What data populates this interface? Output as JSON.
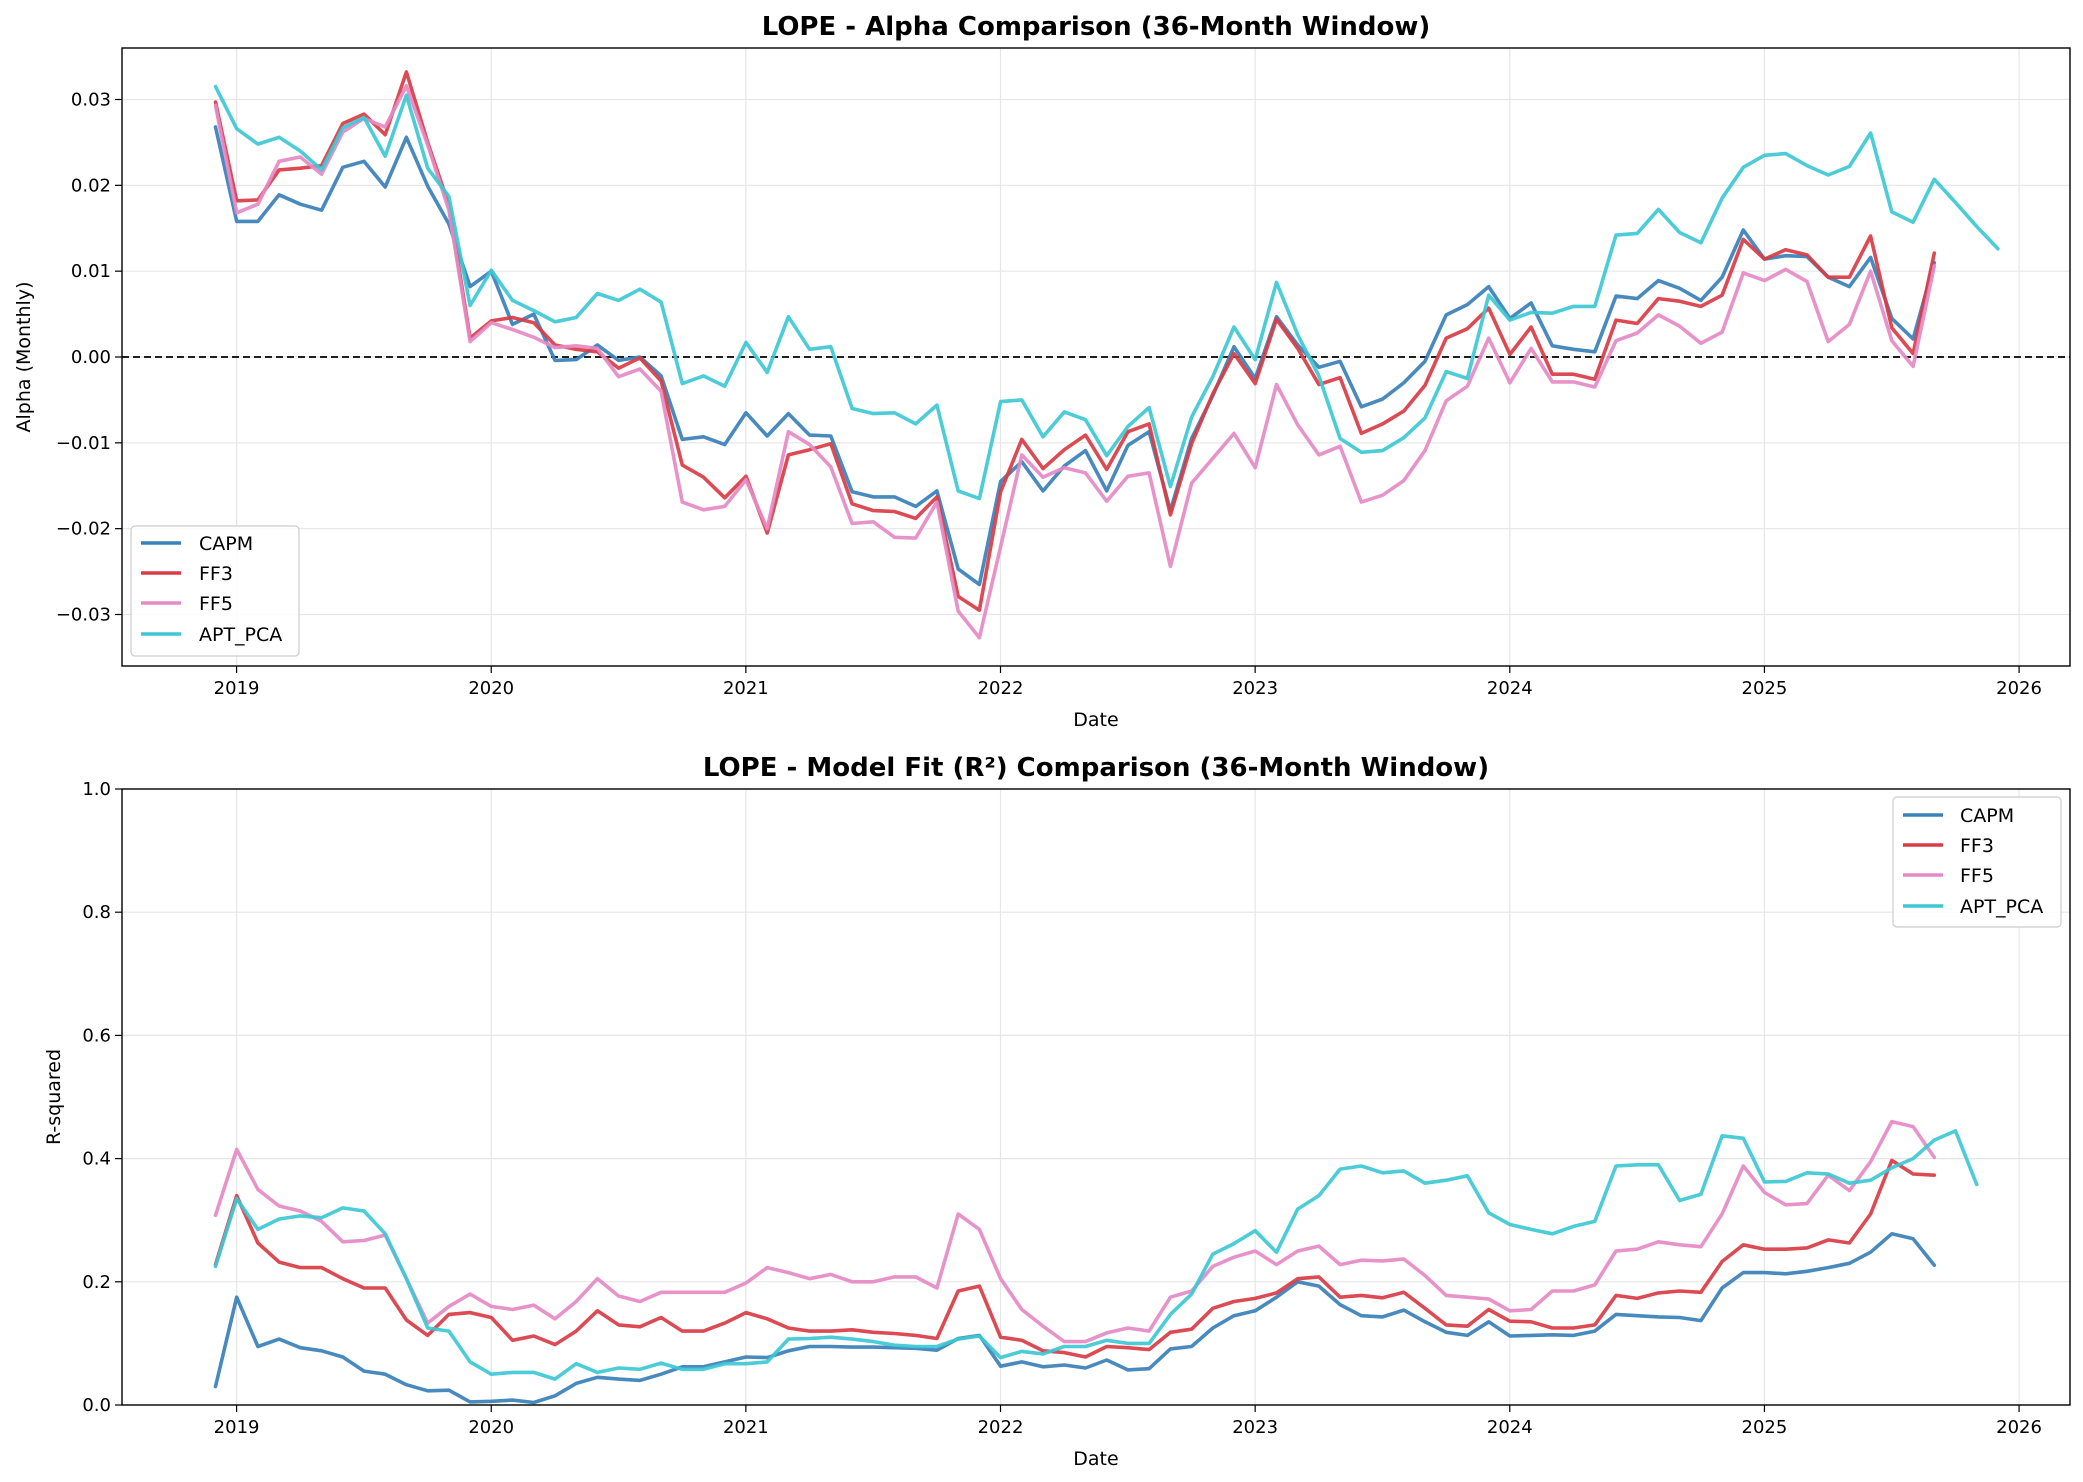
{
  "chart_data": [
    {
      "type": "line",
      "title": "LOPE - Alpha Comparison (36-Month Window)",
      "xlabel": "Date",
      "ylabel": "Alpha (Monthly)",
      "xlim": [
        2018.55,
        2026.2
      ],
      "ylim": [
        -0.036,
        0.036
      ],
      "x_ticks": [
        2019,
        2020,
        2021,
        2022,
        2023,
        2024,
        2025,
        2026
      ],
      "x_tick_labels": [
        "2019",
        "2020",
        "2021",
        "2022",
        "2023",
        "2024",
        "2025",
        "2026"
      ],
      "y_ticks": [
        -0.03,
        -0.02,
        -0.01,
        0.0,
        0.01,
        0.02,
        0.03
      ],
      "y_tick_labels": [
        "−0.03",
        "−0.02",
        "−0.01",
        "0.00",
        "0.01",
        "0.02",
        "0.03"
      ],
      "grid": true,
      "reference_line": 0,
      "legend_position": "lower-left",
      "x_start": 2018.917,
      "x_step": 0.0833333,
      "series": [
        {
          "name": "CAPM",
          "color": "#3a80b9",
          "values": [
            0.0268,
            0.0158,
            0.0158,
            0.0189,
            0.0178,
            0.0171,
            0.0221,
            0.0228,
            0.0198,
            0.0256,
            0.0199,
            0.0155,
            0.0082,
            0.01,
            0.0038,
            0.005,
            -0.0004,
            -0.0003,
            0.0014,
            -0.0004,
            0.0,
            -0.0022,
            -0.0096,
            -0.0093,
            -0.0102,
            -0.0065,
            -0.0092,
            -0.0066,
            -0.0091,
            -0.0092,
            -0.0157,
            -0.0163,
            -0.0163,
            -0.0174,
            -0.0156,
            -0.0247,
            -0.0265,
            -0.0145,
            -0.0122,
            -0.0156,
            -0.0127,
            -0.0109,
            -0.0156,
            -0.0103,
            -0.0087,
            -0.0179,
            -0.0095,
            -0.0045,
            0.0012,
            -0.0025,
            0.0047,
            0.0014,
            -0.0012,
            -0.0005,
            -0.0058,
            -0.0049,
            -0.003,
            -0.0005,
            0.0049,
            0.0061,
            0.0082,
            0.0045,
            0.0063,
            0.0013,
            0.0009,
            0.0006,
            0.0071,
            0.0068,
            0.0089,
            0.008,
            0.0066,
            0.0093,
            0.0148,
            0.0114,
            0.0118,
            0.0117,
            0.0093,
            0.0082,
            0.0116,
            0.0045,
            0.0021,
            0.011
          ]
        },
        {
          "name": "FF3",
          "color": "#d93c45",
          "values": [
            0.0297,
            0.0182,
            0.0183,
            0.0218,
            0.022,
            0.0223,
            0.0272,
            0.0283,
            0.0259,
            0.0332,
            0.025,
            0.0177,
            0.0022,
            0.0042,
            0.0046,
            0.004,
            0.0014,
            0.0009,
            0.0006,
            -0.0013,
            -0.0001,
            -0.0028,
            -0.0126,
            -0.014,
            -0.0164,
            -0.0139,
            -0.0205,
            -0.0114,
            -0.0108,
            -0.0101,
            -0.0171,
            -0.0179,
            -0.018,
            -0.0188,
            -0.0163,
            -0.0279,
            -0.0295,
            -0.0157,
            -0.0096,
            -0.013,
            -0.0108,
            -0.0091,
            -0.0131,
            -0.0087,
            -0.0078,
            -0.0184,
            -0.0101,
            -0.0043,
            0.0004,
            -0.0031,
            0.0044,
            0.001,
            -0.0032,
            -0.0024,
            -0.0089,
            -0.0078,
            -0.0063,
            -0.0033,
            0.0022,
            0.0033,
            0.0057,
            0.0003,
            0.0035,
            -0.002,
            -0.002,
            -0.0026,
            0.0043,
            0.0039,
            0.0068,
            0.0065,
            0.0059,
            0.0072,
            0.0137,
            0.0114,
            0.0125,
            0.0119,
            0.0093,
            0.0093,
            0.0141,
            0.0034,
            0.0004,
            0.0121
          ]
        },
        {
          "name": "FF5",
          "color": "#e58ac5",
          "values": [
            0.0293,
            0.0168,
            0.0178,
            0.0228,
            0.0233,
            0.0213,
            0.0262,
            0.0278,
            0.0268,
            0.0316,
            0.0247,
            0.0171,
            0.0018,
            0.004,
            0.0032,
            0.0023,
            0.0011,
            0.0013,
            0.001,
            -0.0023,
            -0.0014,
            -0.004,
            -0.0169,
            -0.0178,
            -0.0174,
            -0.0143,
            -0.02,
            -0.0087,
            -0.0102,
            -0.0128,
            -0.0194,
            -0.0192,
            -0.021,
            -0.0211,
            -0.0169,
            -0.0296,
            -0.0327,
            -0.0221,
            -0.0114,
            -0.014,
            -0.0129,
            -0.0135,
            -0.0168,
            -0.0139,
            -0.0135,
            -0.0244,
            -0.0147,
            -0.0118,
            -0.0089,
            -0.0129,
            -0.0032,
            -0.0079,
            -0.0114,
            -0.0104,
            -0.0169,
            -0.0161,
            -0.0144,
            -0.0109,
            -0.0051,
            -0.0034,
            0.0022,
            -0.003,
            0.001,
            -0.0029,
            -0.0029,
            -0.0035,
            0.0019,
            0.0028,
            0.0049,
            0.0036,
            0.0016,
            0.0029,
            0.0098,
            0.0089,
            0.0102,
            0.0088,
            0.0018,
            0.0038,
            0.01,
            0.0019,
            -0.0011,
            0.0106
          ]
        },
        {
          "name": "APT_PCA",
          "color": "#3cc8d4",
          "values": [
            0.0315,
            0.0266,
            0.0248,
            0.0256,
            0.024,
            0.0218,
            0.0267,
            0.0279,
            0.0234,
            0.0305,
            0.022,
            0.0187,
            0.006,
            0.0101,
            0.0066,
            0.0054,
            0.0041,
            0.0046,
            0.0074,
            0.0066,
            0.0079,
            0.0064,
            -0.0031,
            -0.0022,
            -0.0034,
            0.0017,
            -0.0018,
            0.0047,
            0.0009,
            0.0012,
            -0.006,
            -0.0066,
            -0.0065,
            -0.0078,
            -0.0056,
            -0.0156,
            -0.0165,
            -0.0052,
            -0.005,
            -0.0093,
            -0.0064,
            -0.0073,
            -0.0115,
            -0.0081,
            -0.0059,
            -0.0151,
            -0.007,
            -0.0023,
            0.0035,
            -0.0003,
            0.0087,
            0.0026,
            -0.0022,
            -0.0095,
            -0.0111,
            -0.0109,
            -0.0094,
            -0.0071,
            -0.0017,
            -0.0025,
            0.0072,
            0.0043,
            0.0052,
            0.0051,
            0.0059,
            0.0059,
            0.0142,
            0.0144,
            0.0172,
            0.0145,
            0.0133,
            0.0185,
            0.0221,
            0.0235,
            0.0237,
            0.0223,
            0.0212,
            0.0222,
            0.0261,
            0.0169,
            0.0157,
            0.0207,
            0.018,
            0.0152,
            0.0126
          ]
        }
      ]
    },
    {
      "type": "line",
      "title": "LOPE - Model Fit (R²) Comparison (36-Month Window)",
      "xlabel": "Date",
      "ylabel": "R-squared",
      "xlim": [
        2018.55,
        2026.2
      ],
      "ylim": [
        0,
        1.0
      ],
      "x_ticks": [
        2019,
        2020,
        2021,
        2022,
        2023,
        2024,
        2025,
        2026
      ],
      "x_tick_labels": [
        "2019",
        "2020",
        "2021",
        "2022",
        "2023",
        "2024",
        "2025",
        "2026"
      ],
      "y_ticks": [
        0.0,
        0.2,
        0.4,
        0.6,
        0.8,
        1.0
      ],
      "y_tick_labels": [
        "0.0",
        "0.2",
        "0.4",
        "0.6",
        "0.8",
        "1.0"
      ],
      "grid": true,
      "legend_position": "top-right",
      "x_start": 2018.917,
      "x_step": 0.0833333,
      "series": [
        {
          "name": "CAPM",
          "color": "#3a80b9",
          "values": [
            0.03,
            0.175,
            0.095,
            0.107,
            0.093,
            0.088,
            0.078,
            0.055,
            0.05,
            0.033,
            0.023,
            0.024,
            0.005,
            0.006,
            0.008,
            0.004,
            0.015,
            0.035,
            0.045,
            0.042,
            0.04,
            0.05,
            0.062,
            0.062,
            0.07,
            0.078,
            0.077,
            0.088,
            0.095,
            0.095,
            0.094,
            0.094,
            0.093,
            0.092,
            0.089,
            0.108,
            0.113,
            0.063,
            0.07,
            0.062,
            0.065,
            0.06,
            0.073,
            0.057,
            0.059,
            0.091,
            0.095,
            0.125,
            0.145,
            0.153,
            0.175,
            0.2,
            0.193,
            0.163,
            0.145,
            0.143,
            0.154,
            0.135,
            0.118,
            0.113,
            0.135,
            0.112,
            0.113,
            0.114,
            0.113,
            0.12,
            0.147,
            0.145,
            0.143,
            0.142,
            0.137,
            0.19,
            0.215,
            0.215,
            0.213,
            0.217,
            0.223,
            0.23,
            0.248,
            0.278,
            0.27,
            0.227
          ]
        },
        {
          "name": "FF3",
          "color": "#d93c45",
          "values": [
            0.228,
            0.34,
            0.263,
            0.232,
            0.223,
            0.223,
            0.205,
            0.19,
            0.19,
            0.138,
            0.113,
            0.147,
            0.15,
            0.142,
            0.105,
            0.112,
            0.098,
            0.12,
            0.153,
            0.13,
            0.127,
            0.142,
            0.12,
            0.12,
            0.133,
            0.15,
            0.14,
            0.125,
            0.12,
            0.12,
            0.122,
            0.118,
            0.116,
            0.113,
            0.108,
            0.185,
            0.193,
            0.11,
            0.105,
            0.088,
            0.085,
            0.078,
            0.095,
            0.093,
            0.09,
            0.118,
            0.123,
            0.157,
            0.168,
            0.173,
            0.182,
            0.205,
            0.208,
            0.175,
            0.178,
            0.174,
            0.183,
            0.157,
            0.13,
            0.128,
            0.155,
            0.136,
            0.135,
            0.125,
            0.125,
            0.13,
            0.178,
            0.173,
            0.182,
            0.185,
            0.183,
            0.233,
            0.26,
            0.253,
            0.253,
            0.255,
            0.268,
            0.263,
            0.31,
            0.397,
            0.375,
            0.373
          ]
        },
        {
          "name": "FF5",
          "color": "#e58ac5",
          "values": [
            0.308,
            0.415,
            0.35,
            0.323,
            0.315,
            0.298,
            0.265,
            0.267,
            0.276,
            0.205,
            0.133,
            0.16,
            0.18,
            0.16,
            0.155,
            0.162,
            0.14,
            0.168,
            0.205,
            0.177,
            0.168,
            0.183,
            0.183,
            0.183,
            0.183,
            0.198,
            0.223,
            0.215,
            0.205,
            0.212,
            0.2,
            0.2,
            0.208,
            0.208,
            0.19,
            0.31,
            0.285,
            0.205,
            0.155,
            0.128,
            0.103,
            0.103,
            0.117,
            0.125,
            0.12,
            0.175,
            0.185,
            0.225,
            0.24,
            0.25,
            0.228,
            0.25,
            0.258,
            0.228,
            0.235,
            0.234,
            0.237,
            0.21,
            0.178,
            0.175,
            0.172,
            0.153,
            0.155,
            0.185,
            0.185,
            0.195,
            0.25,
            0.253,
            0.265,
            0.26,
            0.257,
            0.31,
            0.388,
            0.345,
            0.325,
            0.327,
            0.373,
            0.348,
            0.395,
            0.46,
            0.452,
            0.402
          ]
        },
        {
          "name": "APT_PCA",
          "color": "#3cc8d4",
          "values": [
            0.225,
            0.335,
            0.285,
            0.302,
            0.307,
            0.304,
            0.32,
            0.315,
            0.278,
            0.205,
            0.125,
            0.12,
            0.07,
            0.05,
            0.053,
            0.053,
            0.042,
            0.067,
            0.053,
            0.06,
            0.058,
            0.068,
            0.058,
            0.058,
            0.067,
            0.067,
            0.07,
            0.107,
            0.108,
            0.11,
            0.107,
            0.103,
            0.097,
            0.095,
            0.095,
            0.107,
            0.112,
            0.077,
            0.087,
            0.083,
            0.095,
            0.095,
            0.105,
            0.1,
            0.1,
            0.147,
            0.18,
            0.245,
            0.262,
            0.283,
            0.248,
            0.318,
            0.34,
            0.383,
            0.388,
            0.377,
            0.38,
            0.36,
            0.365,
            0.372,
            0.312,
            0.293,
            0.285,
            0.278,
            0.29,
            0.298,
            0.388,
            0.39,
            0.39,
            0.332,
            0.342,
            0.437,
            0.433,
            0.362,
            0.363,
            0.377,
            0.375,
            0.36,
            0.365,
            0.385,
            0.4,
            0.43,
            0.445,
            0.358
          ]
        }
      ]
    }
  ]
}
